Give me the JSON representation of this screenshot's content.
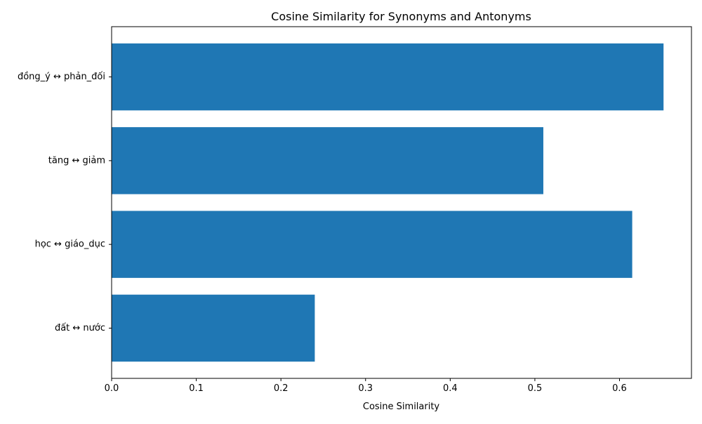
{
  "chart_data": {
    "type": "bar",
    "orientation": "horizontal",
    "title": "Cosine Similarity for Synonyms and Antonyms",
    "xlabel": "Cosine Similarity",
    "ylabel": "",
    "categories": [
      "đồng_ý ↔ phản_đối",
      "tăng ↔ giảm",
      "học ↔ giáo_dục",
      "đất ↔ nước"
    ],
    "values": [
      0.652,
      0.51,
      0.615,
      0.24
    ],
    "xlim": [
      0,
      0.685
    ],
    "xticks": [
      "0.0",
      "0.1",
      "0.2",
      "0.3",
      "0.4",
      "0.5",
      "0.6"
    ],
    "grid": false,
    "bar_color": "#1f77b4"
  }
}
